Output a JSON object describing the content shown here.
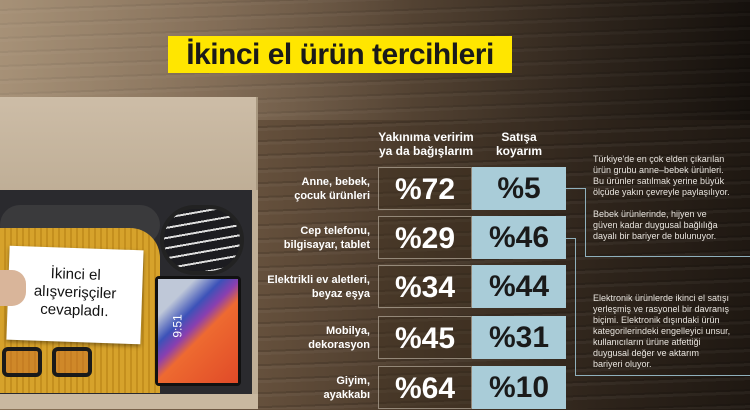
{
  "title": "İkinci el ürün tercihleri",
  "card_text": [
    "İkinci el",
    "alışverişçiler",
    "cevapladı."
  ],
  "tablet_time": "9:51",
  "chart_data": {
    "type": "table",
    "title": "İkinci el ürün tercihleri",
    "columns": [
      "Yakınıma veririm ya da bağışlarım",
      "Satışa koyarım"
    ],
    "column_lines": [
      [
        "Yakınıma veririm",
        "ya da bağışlarım"
      ],
      [
        "Satışa",
        "koyarım"
      ]
    ],
    "categories": [
      "Anne, bebek, çocuk ürünleri",
      "Cep telefonu, bilgisayar, tablet",
      "Elektrikli ev aletleri, beyaz eşya",
      "Mobilya, dekorasyon",
      "Giyim, ayakkabı"
    ],
    "category_lines": [
      [
        "Anne, bebek,",
        "çocuk ürünleri"
      ],
      [
        "Cep telefonu,",
        "bilgisayar, tablet"
      ],
      [
        "Elektrikli ev aletleri,",
        "beyaz eşya"
      ],
      [
        "Mobilya,",
        "dekorasyon"
      ],
      [
        "Giyim,",
        "ayakkabı"
      ]
    ],
    "series": [
      {
        "name": "Yakınıma veririm ya da bağışlarım",
        "values": [
          72,
          29,
          34,
          45,
          64
        ],
        "labels": [
          "%72",
          "%29",
          "%34",
          "%45",
          "%64"
        ]
      },
      {
        "name": "Satışa koyarım",
        "values": [
          5,
          46,
          44,
          31,
          10
        ],
        "labels": [
          "%5",
          "%46",
          "%44",
          "%31",
          "%10"
        ]
      }
    ],
    "unit": "%"
  },
  "notes": [
    [
      "Türkiye'de en çok elden çıkarılan",
      "ürün grubu anne–bebek ürünleri.",
      "Bu ürünler satılmak yerine büyük",
      "ölçüde yakın çevreyle paylaşılıyor.",
      "",
      "Bebek ürünlerinde, hijyen ve",
      "güven kadar duygusal bağlılığa",
      "dayalı bir bariyer de bulunuyor."
    ],
    [
      "Elektronik ürünlerde ikinci el satışı",
      "yerleşmiş ve rasyonel bir davranış",
      "biçimi. Elektronik dışındaki ürün",
      "kategorilerindeki engelleyici unsur,",
      "kullanıcıların ürüne atfettiği",
      "duygusal değer ve aktarım",
      "bariyeri oluyor."
    ]
  ],
  "colors": {
    "title_bg": "#ffe600",
    "sell_cell": "#a9ccd8"
  }
}
